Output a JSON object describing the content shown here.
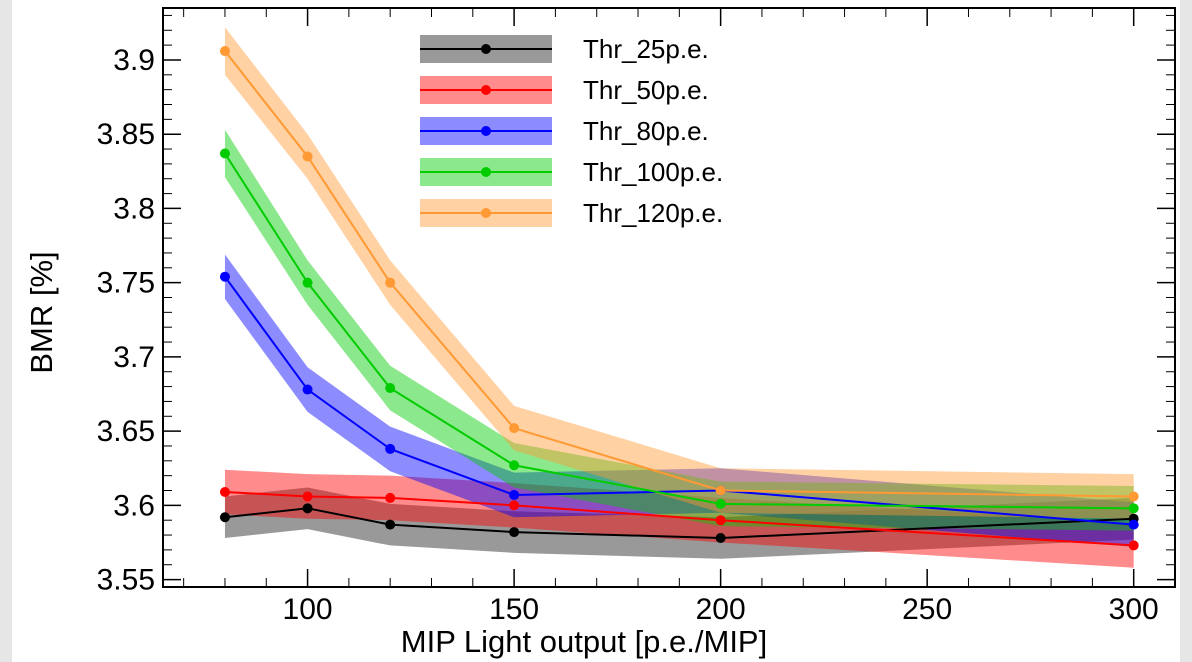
{
  "chart_data": {
    "type": "line",
    "title": "",
    "xlabel": "MIP Light output [p.e./MIP]",
    "ylabel": "BMR [%]",
    "xlim": [
      65,
      310
    ],
    "ylim": [
      3.545,
      3.935
    ],
    "x_ticks": [
      100,
      150,
      200,
      250,
      300
    ],
    "x_tick_labels": [
      "100",
      "150",
      "200",
      "250",
      "300"
    ],
    "y_ticks": [
      3.55,
      3.6,
      3.65,
      3.7,
      3.75,
      3.8,
      3.85,
      3.9
    ],
    "y_tick_labels": [
      "3.55",
      "3.6",
      "3.65",
      "3.7",
      "3.75",
      "3.8",
      "3.85",
      "3.9"
    ],
    "grid": false,
    "legend_position": "top-center",
    "x": [
      80,
      100,
      120,
      150,
      200,
      300
    ],
    "series": [
      {
        "name": "Thr_25p.e.",
        "color": "#000000",
        "band_color": "#555555",
        "values": [
          3.592,
          3.598,
          3.587,
          3.582,
          3.578,
          3.591
        ],
        "band_halfwidth": [
          0.014,
          0.014,
          0.014,
          0.014,
          0.014,
          0.014
        ]
      },
      {
        "name": "Thr_50p.e.",
        "color": "#ff0000",
        "band_color": "#ff0000",
        "values": [
          3.609,
          3.606,
          3.605,
          3.6,
          3.59,
          3.573
        ],
        "band_halfwidth": [
          0.015,
          0.015,
          0.015,
          0.015,
          0.015,
          0.015
        ]
      },
      {
        "name": "Thr_80p.e.",
        "color": "#0000ff",
        "band_color": "#0000ff",
        "values": [
          3.754,
          3.678,
          3.638,
          3.607,
          3.61,
          3.587
        ],
        "band_halfwidth": [
          0.015,
          0.015,
          0.015,
          0.015,
          0.015,
          0.015
        ]
      },
      {
        "name": "Thr_100p.e.",
        "color": "#00cc00",
        "band_color": "#00cc00",
        "values": [
          3.837,
          3.75,
          3.679,
          3.627,
          3.601,
          3.598
        ],
        "band_halfwidth": [
          0.016,
          0.015,
          0.015,
          0.015,
          0.015,
          0.015
        ]
      },
      {
        "name": "Thr_120p.e.",
        "color": "#ff9933",
        "band_color": "#ff9933",
        "values": [
          3.906,
          3.835,
          3.75,
          3.652,
          3.61,
          3.606
        ],
        "band_halfwidth": [
          0.016,
          0.015,
          0.015,
          0.015,
          0.015,
          0.015
        ]
      }
    ]
  }
}
